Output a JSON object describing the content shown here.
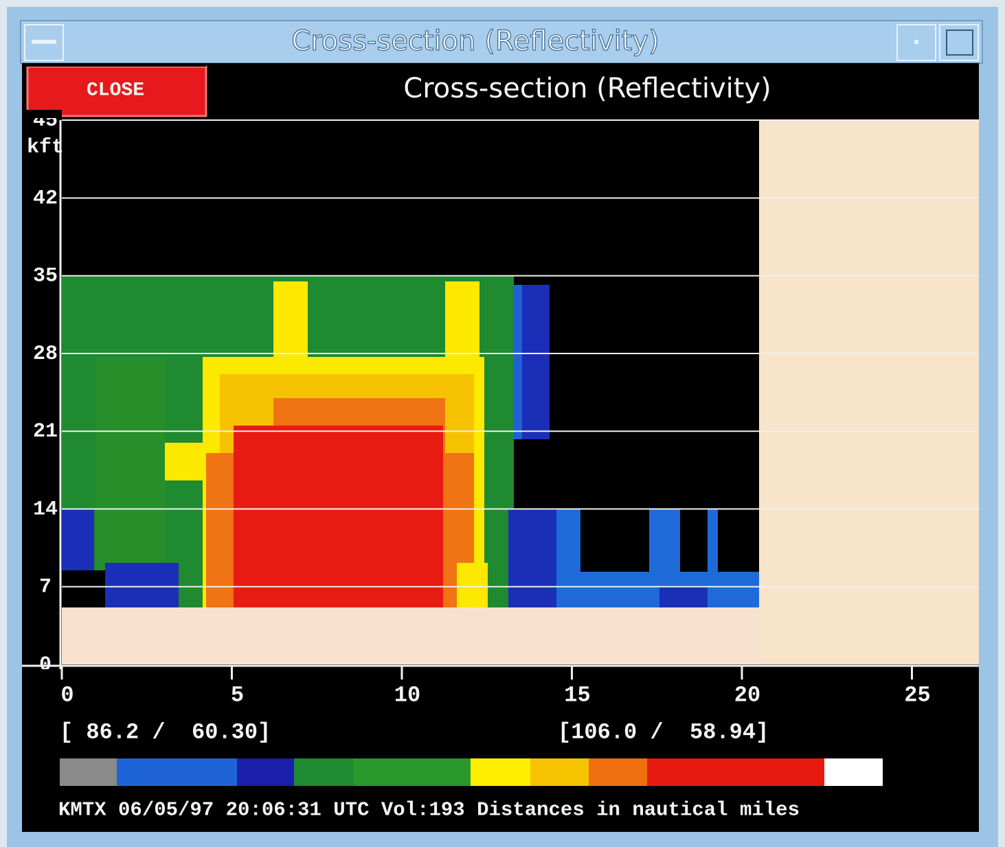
{
  "window": {
    "title": "Cross-section (Reflectivity)"
  },
  "close_button": "CLOSE",
  "plot": {
    "title": "Cross-section (Reflectivity)",
    "y_axis": {
      "top_label": "45",
      "unit": "kft",
      "ticks": [
        42,
        35,
        28,
        21,
        14,
        7,
        0
      ]
    },
    "x_axis": {
      "ticks": [
        0,
        5,
        10,
        15,
        20,
        25
      ]
    },
    "start_point": "[ 86.2 /  60.30]",
    "end_point": "[106.0 /  58.94]"
  },
  "footer": "KMTX 06/05/97 20:06:31 UTC Vol:193 Distances in nautical miles"
}
